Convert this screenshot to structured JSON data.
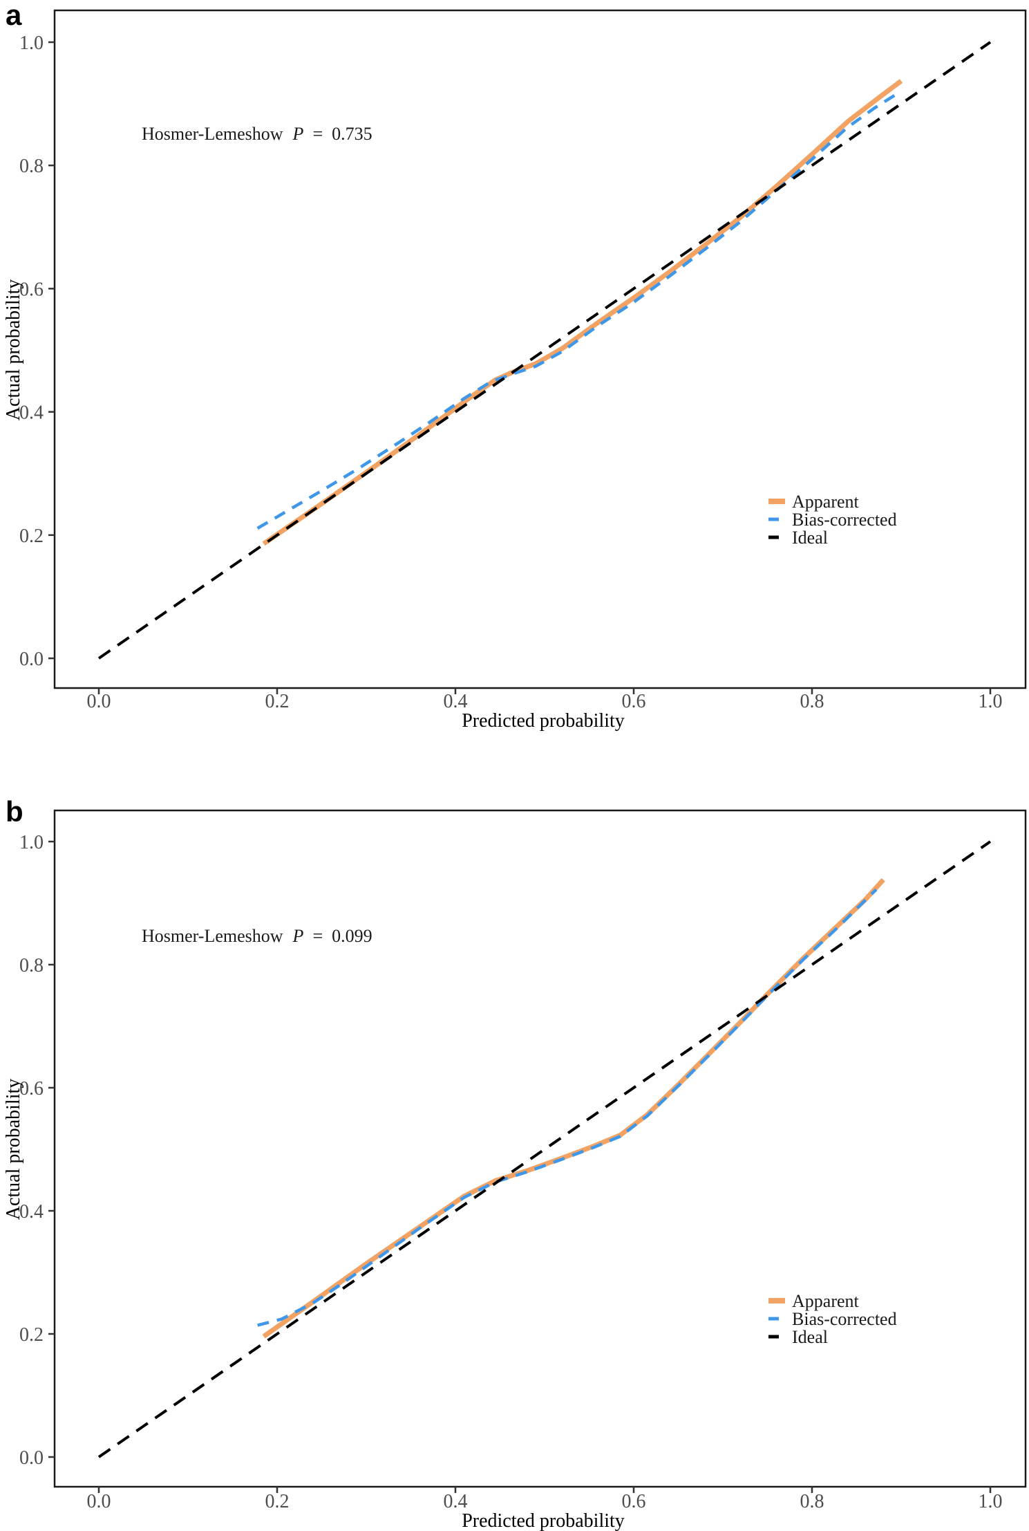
{
  "figure": {
    "background": "#ffffff",
    "border_color": "#1a1a1a",
    "tick_color": "#333333",
    "tick_label_color": "#4d4d4d"
  },
  "chart_data": [
    {
      "type": "line",
      "panel_label": "a",
      "annotation": {
        "prefix": "Hosmer-Lemeshow",
        "symbol": "P",
        "equals": "=",
        "value": "0.735",
        "text": "Hosmer-Lemeshow P = 0.735"
      },
      "x_axis": {
        "title": "Predicted probability",
        "range": [
          0,
          1
        ],
        "tick_values": [
          0,
          0.2,
          0.4,
          0.6,
          0.8,
          1.0
        ],
        "tick_labels": [
          "0.0",
          "0.2",
          "0.4",
          "0.6",
          "0.8",
          "1.0"
        ],
        "grid": false
      },
      "y_axis": {
        "title": "Actual probability",
        "range": [
          0,
          1
        ],
        "tick_values": [
          0,
          0.2,
          0.4,
          0.6,
          0.8,
          1.0
        ],
        "tick_labels": [
          "0.0",
          "0.2",
          "0.4",
          "0.6",
          "0.8",
          "1.0"
        ],
        "grid": false
      },
      "legend": {
        "position": "right-lower",
        "entries": [
          {
            "label": "Apparent",
            "color": "#F2A262",
            "style": "solid"
          },
          {
            "label": "Bias-corrected",
            "color": "#3F97EA",
            "style": "dashed"
          },
          {
            "label": "Ideal",
            "color": "#000000",
            "style": "dashed"
          }
        ]
      },
      "series": [
        {
          "id": "apparent",
          "name": "Apparent",
          "color": "#F2A262",
          "style": "solid",
          "width": 7,
          "dash": "",
          "points": [
            [
              0.185,
              0.186
            ],
            [
              0.25,
              0.251
            ],
            [
              0.31,
              0.312
            ],
            [
              0.37,
              0.374
            ],
            [
              0.42,
              0.427
            ],
            [
              0.445,
              0.452
            ],
            [
              0.465,
              0.465
            ],
            [
              0.49,
              0.478
            ],
            [
              0.52,
              0.503
            ],
            [
              0.56,
              0.545
            ],
            [
              0.6,
              0.585
            ],
            [
              0.64,
              0.627
            ],
            [
              0.68,
              0.671
            ],
            [
              0.72,
              0.716
            ],
            [
              0.76,
              0.766
            ],
            [
              0.8,
              0.818
            ],
            [
              0.84,
              0.871
            ],
            [
              0.875,
              0.91
            ],
            [
              0.9,
              0.937
            ]
          ]
        },
        {
          "id": "bias-corrected",
          "name": "Bias-corrected",
          "color": "#3F97EA",
          "style": "dashed",
          "width": 4.5,
          "dash": "17 12",
          "points": [
            [
              0.178,
              0.211
            ],
            [
              0.21,
              0.238
            ],
            [
              0.25,
              0.272
            ],
            [
              0.29,
              0.307
            ],
            [
              0.33,
              0.344
            ],
            [
              0.37,
              0.382
            ],
            [
              0.41,
              0.422
            ],
            [
              0.44,
              0.449
            ],
            [
              0.465,
              0.462
            ],
            [
              0.49,
              0.474
            ],
            [
              0.52,
              0.498
            ],
            [
              0.56,
              0.54
            ],
            [
              0.6,
              0.578
            ],
            [
              0.64,
              0.62
            ],
            [
              0.68,
              0.664
            ],
            [
              0.72,
              0.709
            ],
            [
              0.76,
              0.759
            ],
            [
              0.8,
              0.81
            ],
            [
              0.84,
              0.862
            ],
            [
              0.87,
              0.893
            ],
            [
              0.893,
              0.914
            ]
          ]
        },
        {
          "id": "ideal",
          "name": "Ideal",
          "color": "#000000",
          "style": "dashed",
          "width": 4,
          "dash": "20 13",
          "points": [
            [
              0,
              0
            ],
            [
              1,
              1
            ]
          ]
        }
      ]
    },
    {
      "type": "line",
      "panel_label": "b",
      "annotation": {
        "prefix": "Hosmer-Lemeshow",
        "symbol": "P",
        "equals": "=",
        "value": "0.099",
        "text": "Hosmer-Lemeshow P = 0.099"
      },
      "x_axis": {
        "title": "Predicted probability",
        "range": [
          0,
          1
        ],
        "tick_values": [
          0,
          0.2,
          0.4,
          0.6,
          0.8,
          1.0
        ],
        "tick_labels": [
          "0.0",
          "0.2",
          "0.4",
          "0.6",
          "0.8",
          "1.0"
        ],
        "grid": false
      },
      "y_axis": {
        "title": "Actual probability",
        "range": [
          0,
          1
        ],
        "tick_values": [
          0,
          0.2,
          0.4,
          0.6,
          0.8,
          1.0
        ],
        "tick_labels": [
          "0.0",
          "0.2",
          "0.4",
          "0.6",
          "0.8",
          "1.0"
        ],
        "grid": false
      },
      "legend": {
        "position": "right-lower",
        "entries": [
          {
            "label": "Apparent",
            "color": "#F2A262",
            "style": "solid"
          },
          {
            "label": "Bias-corrected",
            "color": "#3F97EA",
            "style": "dashed"
          },
          {
            "label": "Ideal",
            "color": "#000000",
            "style": "dashed"
          }
        ]
      },
      "series": [
        {
          "id": "apparent",
          "name": "Apparent",
          "color": "#F2A262",
          "style": "solid",
          "width": 7,
          "dash": "",
          "points": [
            [
              0.185,
              0.196
            ],
            [
              0.24,
              0.252
            ],
            [
              0.3,
              0.314
            ],
            [
              0.36,
              0.374
            ],
            [
              0.41,
              0.424
            ],
            [
              0.445,
              0.449
            ],
            [
              0.48,
              0.465
            ],
            [
              0.52,
              0.486
            ],
            [
              0.555,
              0.505
            ],
            [
              0.585,
              0.523
            ],
            [
              0.615,
              0.556
            ],
            [
              0.65,
              0.605
            ],
            [
              0.69,
              0.663
            ],
            [
              0.72,
              0.707
            ],
            [
              0.75,
              0.752
            ],
            [
              0.79,
              0.81
            ],
            [
              0.83,
              0.865
            ],
            [
              0.86,
              0.906
            ],
            [
              0.88,
              0.938
            ]
          ]
        },
        {
          "id": "bias-corrected",
          "name": "Bias-corrected",
          "color": "#3F97EA",
          "style": "dashed",
          "width": 4.5,
          "dash": "17 12",
          "points": [
            [
              0.178,
              0.214
            ],
            [
              0.205,
              0.224
            ],
            [
              0.24,
              0.25
            ],
            [
              0.27,
              0.279
            ],
            [
              0.31,
              0.32
            ],
            [
              0.36,
              0.372
            ],
            [
              0.41,
              0.422
            ],
            [
              0.445,
              0.447
            ],
            [
              0.48,
              0.463
            ],
            [
              0.52,
              0.484
            ],
            [
              0.555,
              0.503
            ],
            [
              0.585,
              0.521
            ],
            [
              0.615,
              0.554
            ],
            [
              0.65,
              0.603
            ],
            [
              0.69,
              0.661
            ],
            [
              0.72,
              0.705
            ],
            [
              0.75,
              0.75
            ],
            [
              0.79,
              0.808
            ],
            [
              0.83,
              0.862
            ],
            [
              0.855,
              0.898
            ],
            [
              0.872,
              0.922
            ]
          ]
        },
        {
          "id": "ideal",
          "name": "Ideal",
          "color": "#000000",
          "style": "dashed",
          "width": 4,
          "dash": "20 13",
          "points": [
            [
              0,
              0
            ],
            [
              1,
              1
            ]
          ]
        }
      ]
    }
  ]
}
